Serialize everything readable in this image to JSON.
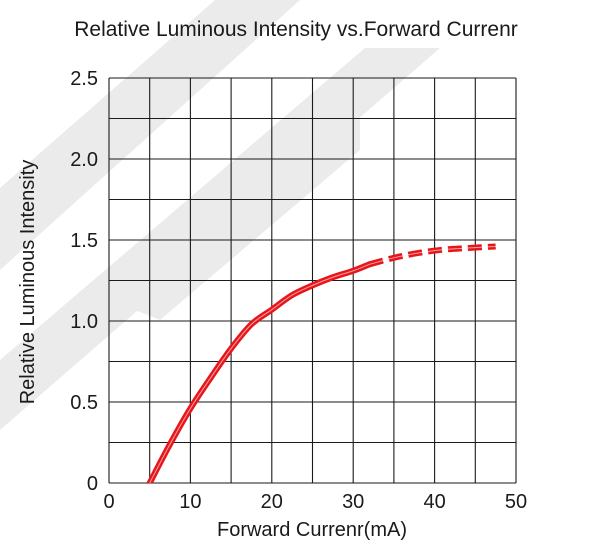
{
  "chart_data": {
    "type": "line",
    "title": "Relative Luminous Intensity vs.Forward Currenr",
    "xlabel": "Forward Currenr(mA)",
    "ylabel": "Relative Luminous Intensity",
    "xlim": [
      0,
      50
    ],
    "ylim": [
      0,
      2.5
    ],
    "x_ticks": [
      0,
      10,
      20,
      30,
      40,
      50
    ],
    "x_tick_labels": [
      "0",
      "10",
      "20",
      "30",
      "40",
      "50"
    ],
    "y_ticks": [
      0,
      0.5,
      1.0,
      1.5,
      2.0,
      2.5
    ],
    "y_tick_labels": [
      "0",
      "0.5",
      "1.0",
      "1.5",
      "2.0",
      "2.5"
    ],
    "grid": true,
    "line_color": "#e8161b",
    "series": [
      {
        "style": "solid",
        "x": [
          5,
          7.5,
          10,
          12.5,
          15,
          17.5,
          20,
          22.5,
          25,
          27.5,
          30,
          32
        ],
        "y": [
          0.0,
          0.24,
          0.46,
          0.65,
          0.83,
          0.98,
          1.07,
          1.16,
          1.22,
          1.27,
          1.31,
          1.35
        ]
      },
      {
        "style": "dashed",
        "x": [
          32,
          35,
          38,
          41,
          44,
          47.5
        ],
        "y": [
          1.35,
          1.39,
          1.42,
          1.44,
          1.45,
          1.46
        ]
      }
    ]
  }
}
